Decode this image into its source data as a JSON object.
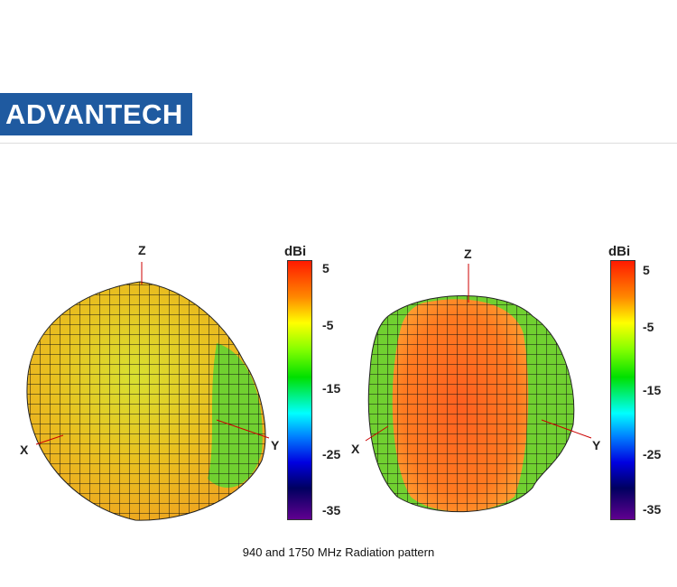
{
  "header": {
    "logo_text": "ADVANTECH",
    "logo_color": "#1f5aa0"
  },
  "plots": [
    {
      "frequency": "940 MHz",
      "axes": {
        "z": "Z",
        "x": "X",
        "y": "Y"
      },
      "colorbar": {
        "unit": "dBi",
        "ticks": [
          "5",
          "-5",
          "-15",
          "-25",
          "-35"
        ]
      }
    },
    {
      "frequency": "1750 MHz",
      "axes": {
        "z": "Z",
        "x": "X",
        "y": "Y"
      },
      "colorbar": {
        "unit": "dBi",
        "ticks": [
          "5",
          "-5",
          "-15",
          "-25",
          "-35"
        ]
      }
    }
  ],
  "caption": "940 and 1750 MHz Radiation pattern"
}
